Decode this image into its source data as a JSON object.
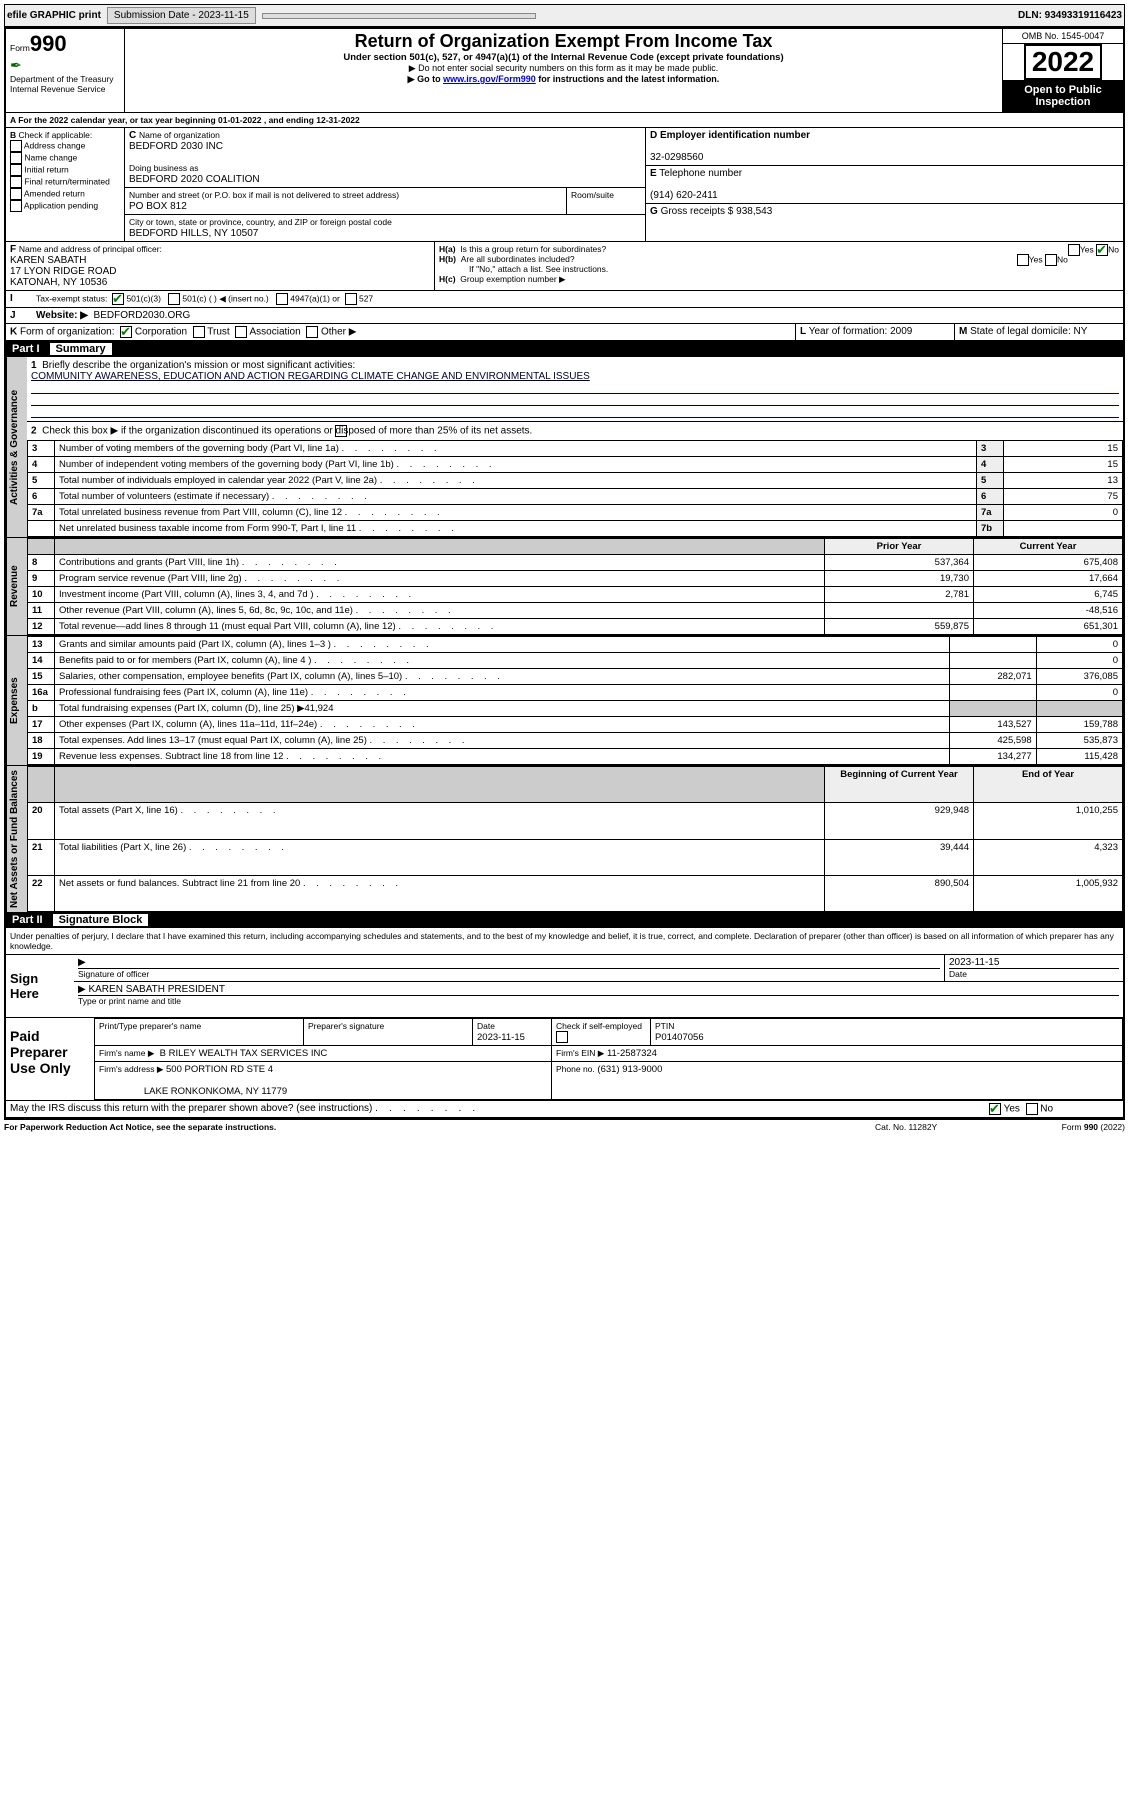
{
  "topbar": {
    "efile": "efile GRAPHIC print",
    "submission_label": "Submission Date - 2023-11-15",
    "dln": "DLN: 93493319116423"
  },
  "header": {
    "form_prefix": "Form",
    "form_no": "990",
    "title": "Return of Organization Exempt From Income Tax",
    "subtitle": "Under section 501(c), 527, or 4947(a)(1) of the Internal Revenue Code (except private foundations)",
    "note1": "▶ Do not enter social security numbers on this form as it may be made public.",
    "note2_pre": "▶ Go to ",
    "note2_link": "www.irs.gov/Form990",
    "note2_post": " for instructions and the latest information.",
    "dept": "Department of the Treasury",
    "irs": "Internal Revenue Service",
    "omb": "OMB No. 1545-0047",
    "year": "2022",
    "inspection1": "Open to Public",
    "inspection2": "Inspection"
  },
  "A": {
    "text": "For the 2022 calendar year, or tax year beginning 01-01-2022   , and ending 12-31-2022"
  },
  "B": {
    "label": "Check if applicable:",
    "opts": [
      "Address change",
      "Name change",
      "Initial return",
      "Final return/terminated",
      "Amended return",
      "Application pending"
    ]
  },
  "C": {
    "name_label": "Name of organization",
    "name": "BEDFORD 2030 INC",
    "dba_label": "Doing business as",
    "dba": "BEDFORD 2020 COALITION",
    "street_label": "Number and street (or P.O. box if mail is not delivered to street address)",
    "room_label": "Room/suite",
    "street": "PO BOX 812",
    "city_label": "City or town, state or province, country, and ZIP or foreign postal code",
    "city": "BEDFORD HILLS, NY  10507"
  },
  "D": {
    "label": "Employer identification number",
    "value": "32-0298560"
  },
  "E": {
    "label": "Telephone number",
    "value": "(914) 620-2411"
  },
  "G": {
    "label": "Gross receipts $",
    "value": "938,543"
  },
  "F": {
    "label": "Name and address of principal officer:",
    "name": "KAREN SABATH",
    "addr1": "17 LYON RIDGE ROAD",
    "addr2": "KATONAH, NY  10536"
  },
  "H": {
    "a": "Is this a group return for subordinates?",
    "b": "Are all subordinates included?",
    "b_note": "If \"No,\" attach a list. See instructions.",
    "c": "Group exemption number ▶",
    "yes": "Yes",
    "no": "No"
  },
  "I": {
    "label": "Tax-exempt status:",
    "opts": [
      "501(c)(3)",
      "501(c) (  ) ◀ (insert no.)",
      "4947(a)(1) or",
      "527"
    ]
  },
  "J": {
    "label": "Website: ▶",
    "value": "BEDFORD2030.ORG"
  },
  "K": {
    "label": "Form of organization:",
    "opts": [
      "Corporation",
      "Trust",
      "Association",
      "Other ▶"
    ]
  },
  "L": {
    "label": "Year of formation:",
    "value": "2009"
  },
  "M": {
    "label": "State of legal domicile:",
    "value": "NY"
  },
  "partI": {
    "label": "Part I",
    "title": "Summary"
  },
  "summary": {
    "q1": "Briefly describe the organization's mission or most significant activities:",
    "mission": "COMMUNITY AWARENESS, EDUCATION AND ACTION REGARDING CLIMATE CHANGE AND ENVIRONMENTAL ISSUES",
    "q2": "Check this box ▶        if the organization discontinued its operations or disposed of more than 25% of its net assets.",
    "rows_gov": [
      {
        "n": "3",
        "t": "Number of voting members of the governing body (Part VI, line 1a)",
        "rn": "3",
        "v": "15"
      },
      {
        "n": "4",
        "t": "Number of independent voting members of the governing body (Part VI, line 1b)",
        "rn": "4",
        "v": "15"
      },
      {
        "n": "5",
        "t": "Total number of individuals employed in calendar year 2022 (Part V, line 2a)",
        "rn": "5",
        "v": "13"
      },
      {
        "n": "6",
        "t": "Total number of volunteers (estimate if necessary)",
        "rn": "6",
        "v": "75"
      },
      {
        "n": "7a",
        "t": "Total unrelated business revenue from Part VIII, column (C), line 12",
        "rn": "7a",
        "v": "0"
      },
      {
        "n": "",
        "t": "Net unrelated business taxable income from Form 990-T, Part I, line 11",
        "rn": "7b",
        "v": ""
      }
    ],
    "col_prior": "Prior Year",
    "col_current": "Current Year",
    "rows_rev": [
      {
        "n": "8",
        "t": "Contributions and grants (Part VIII, line 1h)",
        "p": "537,364",
        "c": "675,408"
      },
      {
        "n": "9",
        "t": "Program service revenue (Part VIII, line 2g)",
        "p": "19,730",
        "c": "17,664"
      },
      {
        "n": "10",
        "t": "Investment income (Part VIII, column (A), lines 3, 4, and 7d )",
        "p": "2,781",
        "c": "6,745"
      },
      {
        "n": "11",
        "t": "Other revenue (Part VIII, column (A), lines 5, 6d, 8c, 9c, 10c, and 11e)",
        "p": "",
        "c": "-48,516"
      },
      {
        "n": "12",
        "t": "Total revenue—add lines 8 through 11 (must equal Part VIII, column (A), line 12)",
        "p": "559,875",
        "c": "651,301"
      }
    ],
    "rows_exp": [
      {
        "n": "13",
        "t": "Grants and similar amounts paid (Part IX, column (A), lines 1–3 )",
        "p": "",
        "c": "0"
      },
      {
        "n": "14",
        "t": "Benefits paid to or for members (Part IX, column (A), line 4 )",
        "p": "",
        "c": "0"
      },
      {
        "n": "15",
        "t": "Salaries, other compensation, employee benefits (Part IX, column (A), lines 5–10)",
        "p": "282,071",
        "c": "376,085"
      },
      {
        "n": "16a",
        "t": "Professional fundraising fees (Part IX, column (A), line 11e)",
        "p": "",
        "c": "0"
      },
      {
        "n": "b",
        "t": "Total fundraising expenses (Part IX, column (D), line 25) ▶41,924",
        "p": "-",
        "c": "-"
      },
      {
        "n": "17",
        "t": "Other expenses (Part IX, column (A), lines 11a–11d, 11f–24e)",
        "p": "143,527",
        "c": "159,788"
      },
      {
        "n": "18",
        "t": "Total expenses. Add lines 13–17 (must equal Part IX, column (A), line 25)",
        "p": "425,598",
        "c": "535,873"
      },
      {
        "n": "19",
        "t": "Revenue less expenses. Subtract line 18 from line 12",
        "p": "134,277",
        "c": "115,428"
      }
    ],
    "col_boy": "Beginning of Current Year",
    "col_eoy": "End of Year",
    "rows_net": [
      {
        "n": "20",
        "t": "Total assets (Part X, line 16)",
        "p": "929,948",
        "c": "1,010,255"
      },
      {
        "n": "21",
        "t": "Total liabilities (Part X, line 26)",
        "p": "39,444",
        "c": "4,323"
      },
      {
        "n": "22",
        "t": "Net assets or fund balances. Subtract line 21 from line 20",
        "p": "890,504",
        "c": "1,005,932"
      }
    ]
  },
  "partII": {
    "label": "Part II",
    "title": "Signature Block"
  },
  "sig": {
    "jurat": "Under penalties of perjury, I declare that I have examined this return, including accompanying schedules and statements, and to the best of my knowledge and belief, it is true, correct, and complete. Declaration of preparer (other than officer) is based on all information of which preparer has any knowledge.",
    "sign_here": "Sign Here",
    "sig_officer": "Signature of officer",
    "date_label": "Date",
    "date": "2023-11-15",
    "name_title": "KAREN SABATH  PRESIDENT",
    "type_label": "Type or print name and title",
    "paid": "Paid Preparer Use Only",
    "p_name_label": "Print/Type preparer's name",
    "p_sig_label": "Preparer's signature",
    "p_date_label": "Date",
    "p_date": "2023-11-15",
    "p_check": "Check        if self-employed",
    "ptin_label": "PTIN",
    "ptin": "P01407056",
    "firm_name_label": "Firm's name    ▶",
    "firm_name": "B RILEY WEALTH TAX SERVICES INC",
    "firm_ein_label": "Firm's EIN ▶",
    "firm_ein": "11-2587324",
    "firm_addr_label": "Firm's address ▶",
    "firm_addr1": "500 PORTION RD STE 4",
    "firm_addr2": "LAKE RONKONKOMA, NY  11779",
    "phone_label": "Phone no.",
    "phone": "(631) 913-9000",
    "discuss": "May the IRS discuss this return with the preparer shown above? (see instructions)"
  },
  "footer": {
    "pra": "For Paperwork Reduction Act Notice, see the separate instructions.",
    "cat": "Cat. No. 11282Y",
    "form": "Form 990 (2022)"
  },
  "vlabels": {
    "gov": "Activities & Governance",
    "rev": "Revenue",
    "exp": "Expenses",
    "net": "Net Assets or Fund Balances"
  }
}
